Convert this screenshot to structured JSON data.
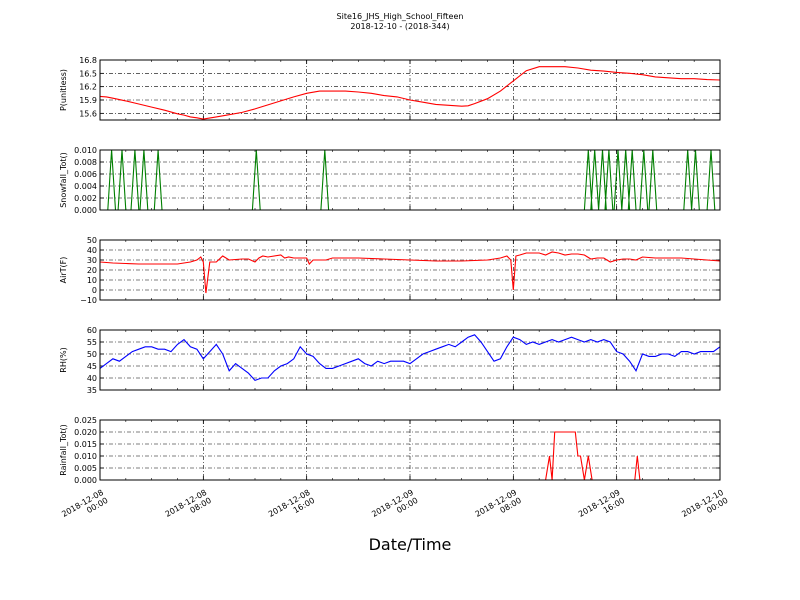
{
  "figure": {
    "title_line1": "Site16_JHS_High_School_Fifteen",
    "title_line2": "2018-12-10 - (2018-344)",
    "xlabel": "Date/Time"
  },
  "chart_data": [
    {
      "type": "line",
      "ylabel": "P(unitless)",
      "color": "#ff0000",
      "ylim": [
        15.45,
        16.8
      ],
      "yticks": [
        15.6,
        15.9,
        16.2,
        16.5,
        16.8
      ],
      "ytick_labels": [
        "15.6",
        "15.9",
        "16.2",
        "16.5",
        "16.8"
      ],
      "grid": true,
      "series": [
        {
          "x": [
            0,
            0.5,
            1,
            2,
            3,
            4,
            5,
            6,
            6.5,
            7,
            7.5,
            8,
            9,
            10,
            11,
            12,
            13,
            14,
            15,
            16,
            17,
            18,
            19,
            20,
            21,
            22,
            23,
            24,
            25,
            26,
            27,
            28,
            28.5,
            29,
            30,
            31,
            32,
            33,
            34,
            35,
            36,
            37,
            38,
            39,
            40,
            41,
            42,
            43,
            44,
            45,
            46,
            47,
            48
          ],
          "y": [
            15.98,
            15.97,
            15.94,
            15.88,
            15.81,
            15.74,
            15.67,
            15.59,
            15.56,
            15.52,
            15.5,
            15.47,
            15.52,
            15.57,
            15.62,
            15.7,
            15.79,
            15.88,
            15.97,
            16.05,
            16.1,
            16.1,
            16.1,
            16.08,
            16.05,
            16.0,
            15.97,
            15.9,
            15.85,
            15.8,
            15.78,
            15.76,
            15.77,
            15.82,
            15.93,
            16.1,
            16.33,
            16.56,
            16.65,
            16.65,
            16.65,
            16.62,
            16.57,
            16.55,
            16.52,
            16.5,
            16.47,
            16.42,
            16.4,
            16.38,
            16.38,
            16.36,
            16.35
          ]
        }
      ]
    },
    {
      "type": "line",
      "ylabel": "Snowfall_Tot()",
      "color": "#007f00",
      "ylim": [
        0,
        0.01
      ],
      "yticks": [
        0,
        0.002,
        0.004,
        0.006,
        0.008,
        0.01
      ],
      "ytick_labels": [
        "0.000",
        "0.002",
        "0.004",
        "0.006",
        "0.008",
        "0.010"
      ],
      "grid": true,
      "spikes": [
        0.9,
        1.7,
        2.7,
        3.4,
        4.5,
        12.1,
        17.4,
        37.8,
        38.3,
        38.9,
        39.4,
        40.1,
        40.7,
        41.2,
        42.1,
        42.8,
        45.5,
        46.1,
        47.3
      ],
      "spike_value": 0.01,
      "spike_halfwidth": 0.3
    },
    {
      "type": "line",
      "ylabel": "AirT(F)",
      "color": "#ff0000",
      "ylim": [
        -10,
        50
      ],
      "yticks": [
        -10,
        0,
        10,
        20,
        30,
        40,
        50
      ],
      "ytick_labels": [
        "−10",
        "0",
        "10",
        "20",
        "30",
        "40",
        "50"
      ],
      "grid": true,
      "series": [
        {
          "x": [
            0,
            1,
            2,
            3,
            4,
            5,
            6,
            7,
            7.5,
            7.8,
            8,
            8.2,
            8.5,
            9,
            9.5,
            10,
            11,
            11.5,
            12,
            12.3,
            12.6,
            13,
            14,
            14.3,
            14.6,
            15,
            16,
            16.2,
            16.5,
            17,
            17.5,
            18,
            20,
            22,
            24,
            26,
            28,
            30,
            31,
            31.5,
            31.8,
            32,
            32.2,
            32.5,
            33,
            34,
            34.5,
            35,
            35.5,
            36,
            36.5,
            37,
            37.5,
            38,
            38.5,
            39,
            39.5,
            40,
            40.5,
            41,
            41.5,
            42,
            43,
            44,
            45,
            46,
            47,
            48
          ],
          "y": [
            28,
            27,
            26.5,
            26,
            26,
            26,
            26,
            28,
            30,
            33,
            28,
            -3,
            28,
            28,
            34,
            30,
            31,
            31,
            28,
            32,
            34,
            33,
            35,
            32,
            33,
            32,
            32,
            26,
            30,
            30,
            30,
            32,
            32,
            31,
            30,
            29,
            29,
            30,
            32,
            34,
            30,
            0,
            34,
            35,
            37,
            37,
            35,
            38,
            37,
            35,
            36,
            36,
            35,
            31,
            32,
            32,
            28,
            30,
            31,
            31,
            30,
            33,
            32,
            32,
            32,
            31,
            30,
            29
          ]
        }
      ]
    },
    {
      "type": "line",
      "ylabel": "RH(%)",
      "color": "#0000ff",
      "ylim": [
        35,
        60
      ],
      "yticks": [
        35,
        40,
        45,
        50,
        55,
        60
      ],
      "ytick_labels": [
        "35",
        "40",
        "45",
        "50",
        "55",
        "60"
      ],
      "grid": true,
      "series": [
        {
          "x": [
            0,
            0.5,
            1,
            1.5,
            2,
            2.5,
            3,
            3.5,
            4,
            4.5,
            5,
            5.5,
            6,
            6.5,
            7,
            7.5,
            8,
            8.5,
            9,
            9.5,
            10,
            10.5,
            11,
            11.5,
            12,
            12.5,
            13,
            13.5,
            14,
            14.5,
            15,
            15.5,
            16,
            16.5,
            17,
            17.5,
            18,
            18.5,
            19,
            19.5,
            20,
            20.5,
            21,
            21.5,
            22,
            22.5,
            23,
            23.5,
            24,
            24.5,
            25,
            25.5,
            26,
            26.5,
            27,
            27.5,
            28,
            28.5,
            29,
            29.5,
            30,
            30.5,
            31,
            31.5,
            32,
            32.5,
            33,
            33.5,
            34,
            34.5,
            35,
            35.5,
            36,
            36.5,
            37,
            37.5,
            38,
            38.5,
            39,
            39.5,
            40,
            40.5,
            41,
            41.5,
            42,
            42.5,
            43,
            43.5,
            44,
            44.5,
            45,
            45.5,
            46,
            46.5,
            47,
            47.5,
            48
          ],
          "y": [
            44,
            46,
            48,
            47,
            49,
            51,
            52,
            53,
            53,
            52,
            52,
            51,
            54,
            56,
            53,
            52,
            48,
            51,
            54,
            50,
            43,
            46,
            44,
            42,
            39,
            40,
            40,
            43,
            45,
            46,
            48,
            53,
            50,
            49,
            46,
            44,
            44,
            45,
            46,
            47,
            48,
            46,
            45,
            47,
            46,
            47,
            47,
            47,
            46,
            48,
            50,
            51,
            52,
            53,
            54,
            53,
            55,
            57,
            58,
            55,
            51,
            47,
            48,
            53,
            57,
            56,
            54,
            55,
            54,
            55,
            56,
            55,
            56,
            57,
            56,
            55,
            56,
            55,
            56,
            55,
            51,
            50,
            47,
            43,
            50,
            49,
            49,
            50,
            50,
            49,
            51,
            51,
            50,
            51,
            51,
            51,
            53
          ]
        }
      ]
    },
    {
      "type": "line",
      "ylabel": "Rainfall_Tot()",
      "color": "#ff0000",
      "ylim": [
        0,
        0.025
      ],
      "yticks": [
        0,
        0.005,
        0.01,
        0.015,
        0.02,
        0.025
      ],
      "ytick_labels": [
        "0.000",
        "0.005",
        "0.010",
        "0.015",
        "0.020",
        "0.025"
      ],
      "grid": true,
      "series": [
        {
          "x": [
            0,
            34.5,
            34.8,
            35.0,
            35.2,
            35.4,
            36.8,
            37.0,
            37.2,
            37.5,
            37.8,
            38.1,
            38.4,
            38.6,
            41.4,
            41.6,
            41.8,
            48
          ],
          "y": [
            0,
            0,
            0.01,
            0,
            0.02,
            0.02,
            0.02,
            0.01,
            0.01,
            0,
            0.01,
            0,
            0,
            0,
            0,
            0.01,
            0,
            0
          ]
        }
      ]
    }
  ],
  "xaxis": {
    "range": [
      0,
      48
    ],
    "ticks": [
      0,
      8,
      16,
      24,
      32,
      40,
      48
    ],
    "tick_labels": [
      [
        "2018-12-08",
        "00:00"
      ],
      [
        "2018-12-08",
        "08:00"
      ],
      [
        "2018-12-08",
        "16:00"
      ],
      [
        "2018-12-09",
        "00:00"
      ],
      [
        "2018-12-09",
        "08:00"
      ],
      [
        "2018-12-09",
        "16:00"
      ],
      [
        "2018-12-10",
        "00:00"
      ]
    ]
  }
}
